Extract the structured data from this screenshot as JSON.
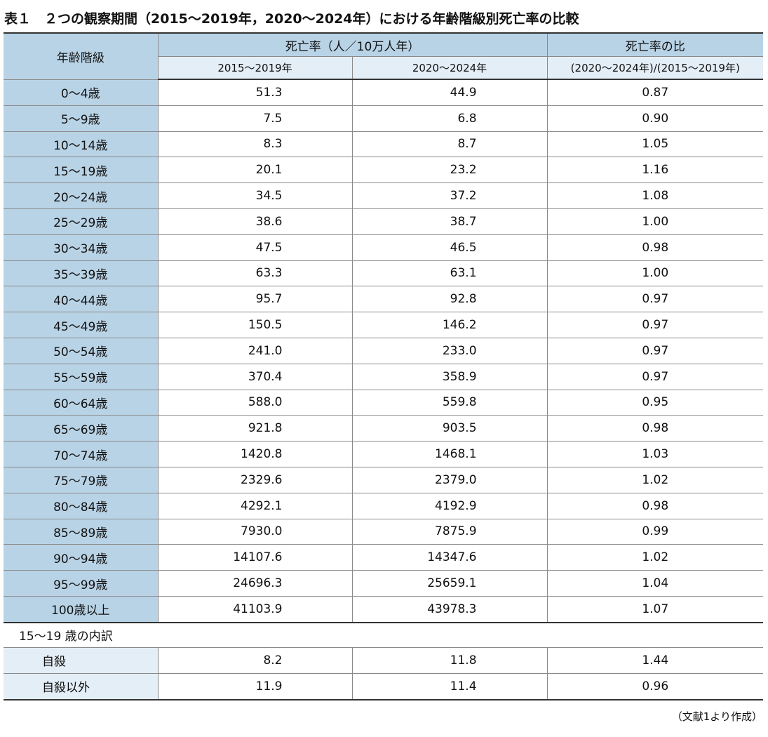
{
  "title": "表１　２つの観察期間（2015～2019年，2020～2024年）における年齢階級別死亡率の比較",
  "table": {
    "header": {
      "age": "年齢階級",
      "rate": "死亡率（人／10万人年）",
      "ratio": "死亡率の比",
      "period1": "2015～2019年",
      "period2": "2020～2024年",
      "ratio_def": "(2020～2024年)/(2015～2019年)"
    },
    "rows": [
      [
        "0～4歳",
        "51.3",
        "44.9",
        "0.87"
      ],
      [
        "5～9歳",
        "7.5",
        "6.8",
        "0.90"
      ],
      [
        "10～14歳",
        "8.3",
        "8.7",
        "1.05"
      ],
      [
        "15～19歳",
        "20.1",
        "23.2",
        "1.16"
      ],
      [
        "20～24歳",
        "34.5",
        "37.2",
        "1.08"
      ],
      [
        "25～29歳",
        "38.6",
        "38.7",
        "1.00"
      ],
      [
        "30～34歳",
        "47.5",
        "46.5",
        "0.98"
      ],
      [
        "35～39歳",
        "63.3",
        "63.1",
        "1.00"
      ],
      [
        "40～44歳",
        "95.7",
        "92.8",
        "0.97"
      ],
      [
        "45～49歳",
        "150.5",
        "146.2",
        "0.97"
      ],
      [
        "50～54歳",
        "241.0",
        "233.0",
        "0.97"
      ],
      [
        "55～59歳",
        "370.4",
        "358.9",
        "0.97"
      ],
      [
        "60～64歳",
        "588.0",
        "559.8",
        "0.95"
      ],
      [
        "65～69歳",
        "921.8",
        "903.5",
        "0.98"
      ],
      [
        "70～74歳",
        "1420.8",
        "1468.1",
        "1.03"
      ],
      [
        "75～79歳",
        "2329.6",
        "2379.0",
        "1.02"
      ],
      [
        "80～84歳",
        "4292.1",
        "4192.9",
        "0.98"
      ],
      [
        "85～89歳",
        "7930.0",
        "7875.9",
        "0.99"
      ],
      [
        "90～94歳",
        "14107.6",
        "14347.6",
        "1.02"
      ],
      [
        "95～99歳",
        "24696.3",
        "25659.1",
        "1.04"
      ],
      [
        "100歳以上",
        "41103.9",
        "43978.3",
        "1.07"
      ]
    ],
    "breakdown_title": "15～19 歳の内訳",
    "breakdown_rows": [
      [
        "自殺",
        "8.2",
        "11.8",
        "1.44"
      ],
      [
        "自殺以外",
        "11.9",
        "11.4",
        "0.96"
      ]
    ]
  },
  "source": "（文献1より作成）"
}
